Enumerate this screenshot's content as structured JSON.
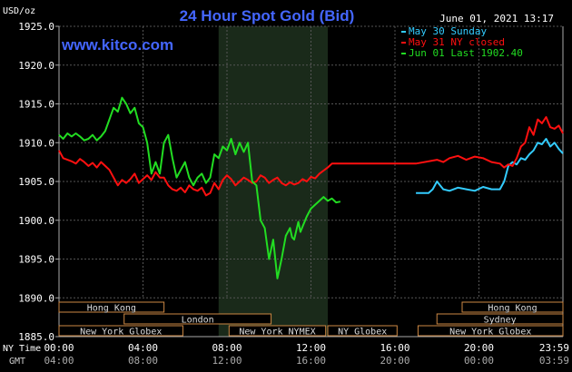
{
  "chart_data": {
    "type": "line",
    "title": "24 Hour Spot Gold (Bid)",
    "watermark": "www.kitco.com",
    "y_unit": "USD/oz",
    "timestamp": "June 01, 2021 13:17",
    "ylim": [
      1885,
      1925
    ],
    "yticks": [
      1925,
      1920,
      1915,
      1910,
      1905,
      1900,
      1895,
      1890,
      1885
    ],
    "ytick_labels": [
      "1925.0",
      "1920.0",
      "1915.0",
      "1910.0",
      "1905.0",
      "1900.0",
      "1895.0",
      "1890.0",
      "1885.0"
    ],
    "xlim": [
      0,
      24
    ],
    "xticks_ny": [
      {
        "x": 0,
        "label": "00:00"
      },
      {
        "x": 4,
        "label": "04:00"
      },
      {
        "x": 8,
        "label": "08:00"
      },
      {
        "x": 12,
        "label": "12:00"
      },
      {
        "x": 16,
        "label": "16:00"
      },
      {
        "x": 20,
        "label": "20:00"
      },
      {
        "x": 24,
        "label": "23:59"
      }
    ],
    "xticks_gmt": [
      {
        "x": 0,
        "label": "04:00"
      },
      {
        "x": 4,
        "label": "08:00"
      },
      {
        "x": 8,
        "label": "12:00"
      },
      {
        "x": 12,
        "label": "16:00"
      },
      {
        "x": 16,
        "label": "20:00"
      },
      {
        "x": 20,
        "label": "00:00"
      },
      {
        "x": 24,
        "label": "03:59"
      }
    ],
    "row_label_ny": "NY Time",
    "row_label_gmt": "GMT",
    "shaded_range": [
      7.6,
      12.8
    ],
    "grid": true,
    "legend_position": "top-right",
    "sessions": [
      {
        "label": "Hong Kong",
        "start": 0,
        "end": 5,
        "row": 0
      },
      {
        "label": "London",
        "start": 3.1,
        "end": 10.1,
        "row": 1
      },
      {
        "label": "New York Globex",
        "start": 0,
        "end": 5.9,
        "row": 2
      },
      {
        "label": "New York NYMEX",
        "start": 8.1,
        "end": 12.7,
        "row": 2
      },
      {
        "label": "NY Globex",
        "start": 12.8,
        "end": 16.1,
        "row": 2
      },
      {
        "label": "Hong Kong",
        "start": 19.2,
        "end": 24,
        "row": 0
      },
      {
        "label": "Sydney",
        "start": 18,
        "end": 24,
        "row": 1
      },
      {
        "label": "New York Globex",
        "start": 17.1,
        "end": 24,
        "row": 2
      }
    ],
    "series": [
      {
        "name": "May 30 Sunday",
        "color": "#33CCFF",
        "x": [
          17.0,
          17.6,
          17.8,
          18.0,
          18.3,
          18.6,
          19.0,
          19.4,
          19.8,
          20.2,
          20.6,
          21.0,
          21.2,
          21.4,
          21.6,
          21.8,
          22.0,
          22.2,
          22.4,
          22.6,
          22.8,
          23.0,
          23.2,
          23.4,
          23.6,
          23.8,
          24.0
        ],
        "y": [
          1903.5,
          1903.5,
          1904.0,
          1905.0,
          1904.0,
          1903.8,
          1904.2,
          1904.0,
          1903.8,
          1904.3,
          1904.0,
          1904.0,
          1905.0,
          1907.0,
          1907.5,
          1907.2,
          1908.0,
          1907.8,
          1908.5,
          1909.0,
          1910.0,
          1909.8,
          1910.5,
          1909.5,
          1910.0,
          1909.2,
          1908.6
        ]
      },
      {
        "name": "May 31 NY closed",
        "color": "#FF1010",
        "x": [
          0.0,
          0.2,
          0.4,
          0.6,
          0.8,
          1.0,
          1.2,
          1.4,
          1.6,
          1.8,
          2.0,
          2.2,
          2.4,
          2.6,
          2.8,
          3.0,
          3.2,
          3.4,
          3.6,
          3.8,
          4.0,
          4.2,
          4.4,
          4.6,
          4.8,
          5.0,
          5.2,
          5.4,
          5.6,
          5.8,
          6.0,
          6.2,
          6.4,
          6.6,
          6.8,
          7.0,
          7.2,
          7.4,
          7.6,
          7.8,
          8.0,
          8.2,
          8.4,
          8.6,
          8.8,
          9.0,
          9.2,
          9.4,
          9.6,
          9.8,
          10.0,
          10.2,
          10.4,
          10.6,
          10.8,
          11.0,
          11.2,
          11.4,
          11.6,
          11.8,
          12.0,
          12.2,
          12.4,
          12.6,
          12.8,
          13.0,
          13.4,
          14.0,
          15.0,
          16.0,
          17.0,
          18.0,
          18.3,
          18.6,
          19.0,
          19.4,
          19.8,
          20.2,
          20.6,
          21.0,
          21.2,
          21.4,
          21.6,
          21.8,
          22.0,
          22.2,
          22.4,
          22.6,
          22.8,
          23.0,
          23.2,
          23.4,
          23.6,
          23.8,
          24.0
        ],
        "y": [
          1909.0,
          1908.0,
          1907.8,
          1907.6,
          1907.3,
          1907.9,
          1907.5,
          1907.0,
          1907.4,
          1906.8,
          1907.5,
          1907.0,
          1906.5,
          1905.5,
          1904.5,
          1905.2,
          1904.8,
          1905.3,
          1906.0,
          1904.8,
          1905.3,
          1905.8,
          1905.2,
          1906.2,
          1905.5,
          1905.5,
          1904.5,
          1904.0,
          1903.8,
          1904.2,
          1903.6,
          1904.5,
          1904.0,
          1903.8,
          1904.2,
          1903.2,
          1903.5,
          1904.8,
          1904.0,
          1905.2,
          1905.8,
          1905.3,
          1904.5,
          1905.0,
          1905.5,
          1905.2,
          1904.8,
          1905.0,
          1905.8,
          1905.5,
          1904.8,
          1905.2,
          1905.5,
          1904.8,
          1904.5,
          1904.9,
          1904.6,
          1904.8,
          1905.3,
          1905.0,
          1905.6,
          1905.4,
          1906.0,
          1906.4,
          1906.8,
          1907.3,
          1907.3,
          1907.3,
          1907.3,
          1907.3,
          1907.3,
          1907.8,
          1907.5,
          1908.0,
          1908.3,
          1907.8,
          1908.2,
          1908.0,
          1907.5,
          1907.3,
          1906.8,
          1907.2,
          1907.0,
          1908.0,
          1909.5,
          1910.0,
          1912.0,
          1911.0,
          1913.0,
          1912.5,
          1913.3,
          1912.0,
          1911.8,
          1912.2,
          1911.2
        ]
      },
      {
        "name": "Jun 01 Last 1902.40",
        "color": "#22DD22",
        "x": [
          0.0,
          0.2,
          0.4,
          0.6,
          0.8,
          1.0,
          1.2,
          1.4,
          1.6,
          1.8,
          2.0,
          2.2,
          2.4,
          2.6,
          2.8,
          3.0,
          3.2,
          3.4,
          3.6,
          3.8,
          4.0,
          4.2,
          4.4,
          4.6,
          4.8,
          5.0,
          5.2,
          5.4,
          5.6,
          5.8,
          6.0,
          6.2,
          6.4,
          6.6,
          6.8,
          7.0,
          7.2,
          7.4,
          7.6,
          7.8,
          8.0,
          8.2,
          8.4,
          8.6,
          8.8,
          9.0,
          9.2,
          9.4,
          9.6,
          9.8,
          10.0,
          10.2,
          10.4,
          10.6,
          10.8,
          11.0,
          11.1,
          11.2,
          11.4,
          11.5,
          11.6,
          11.8,
          12.0,
          12.2,
          12.4,
          12.6,
          12.8,
          13.0,
          13.2,
          13.4
        ],
        "y": [
          1911.0,
          1910.5,
          1911.2,
          1910.8,
          1911.2,
          1910.8,
          1910.3,
          1910.5,
          1911.0,
          1910.3,
          1910.8,
          1911.5,
          1913.0,
          1914.5,
          1914.0,
          1915.8,
          1915.0,
          1913.8,
          1914.5,
          1912.5,
          1912.0,
          1910.0,
          1906.0,
          1907.5,
          1906.0,
          1910.0,
          1911.0,
          1908.0,
          1905.5,
          1906.5,
          1907.5,
          1905.5,
          1904.5,
          1905.5,
          1906.0,
          1904.8,
          1905.5,
          1908.5,
          1908.0,
          1909.5,
          1909.0,
          1910.5,
          1908.5,
          1910.0,
          1908.8,
          1910.0,
          1905.0,
          1904.5,
          1900.0,
          1899.0,
          1895.0,
          1897.5,
          1892.5,
          1895.0,
          1898.0,
          1899.0,
          1897.8,
          1897.5,
          1899.8,
          1898.5,
          1899.2,
          1900.5,
          1901.5,
          1902.0,
          1902.5,
          1903.0,
          1902.5,
          1902.8,
          1902.3,
          1902.4
        ]
      }
    ]
  }
}
